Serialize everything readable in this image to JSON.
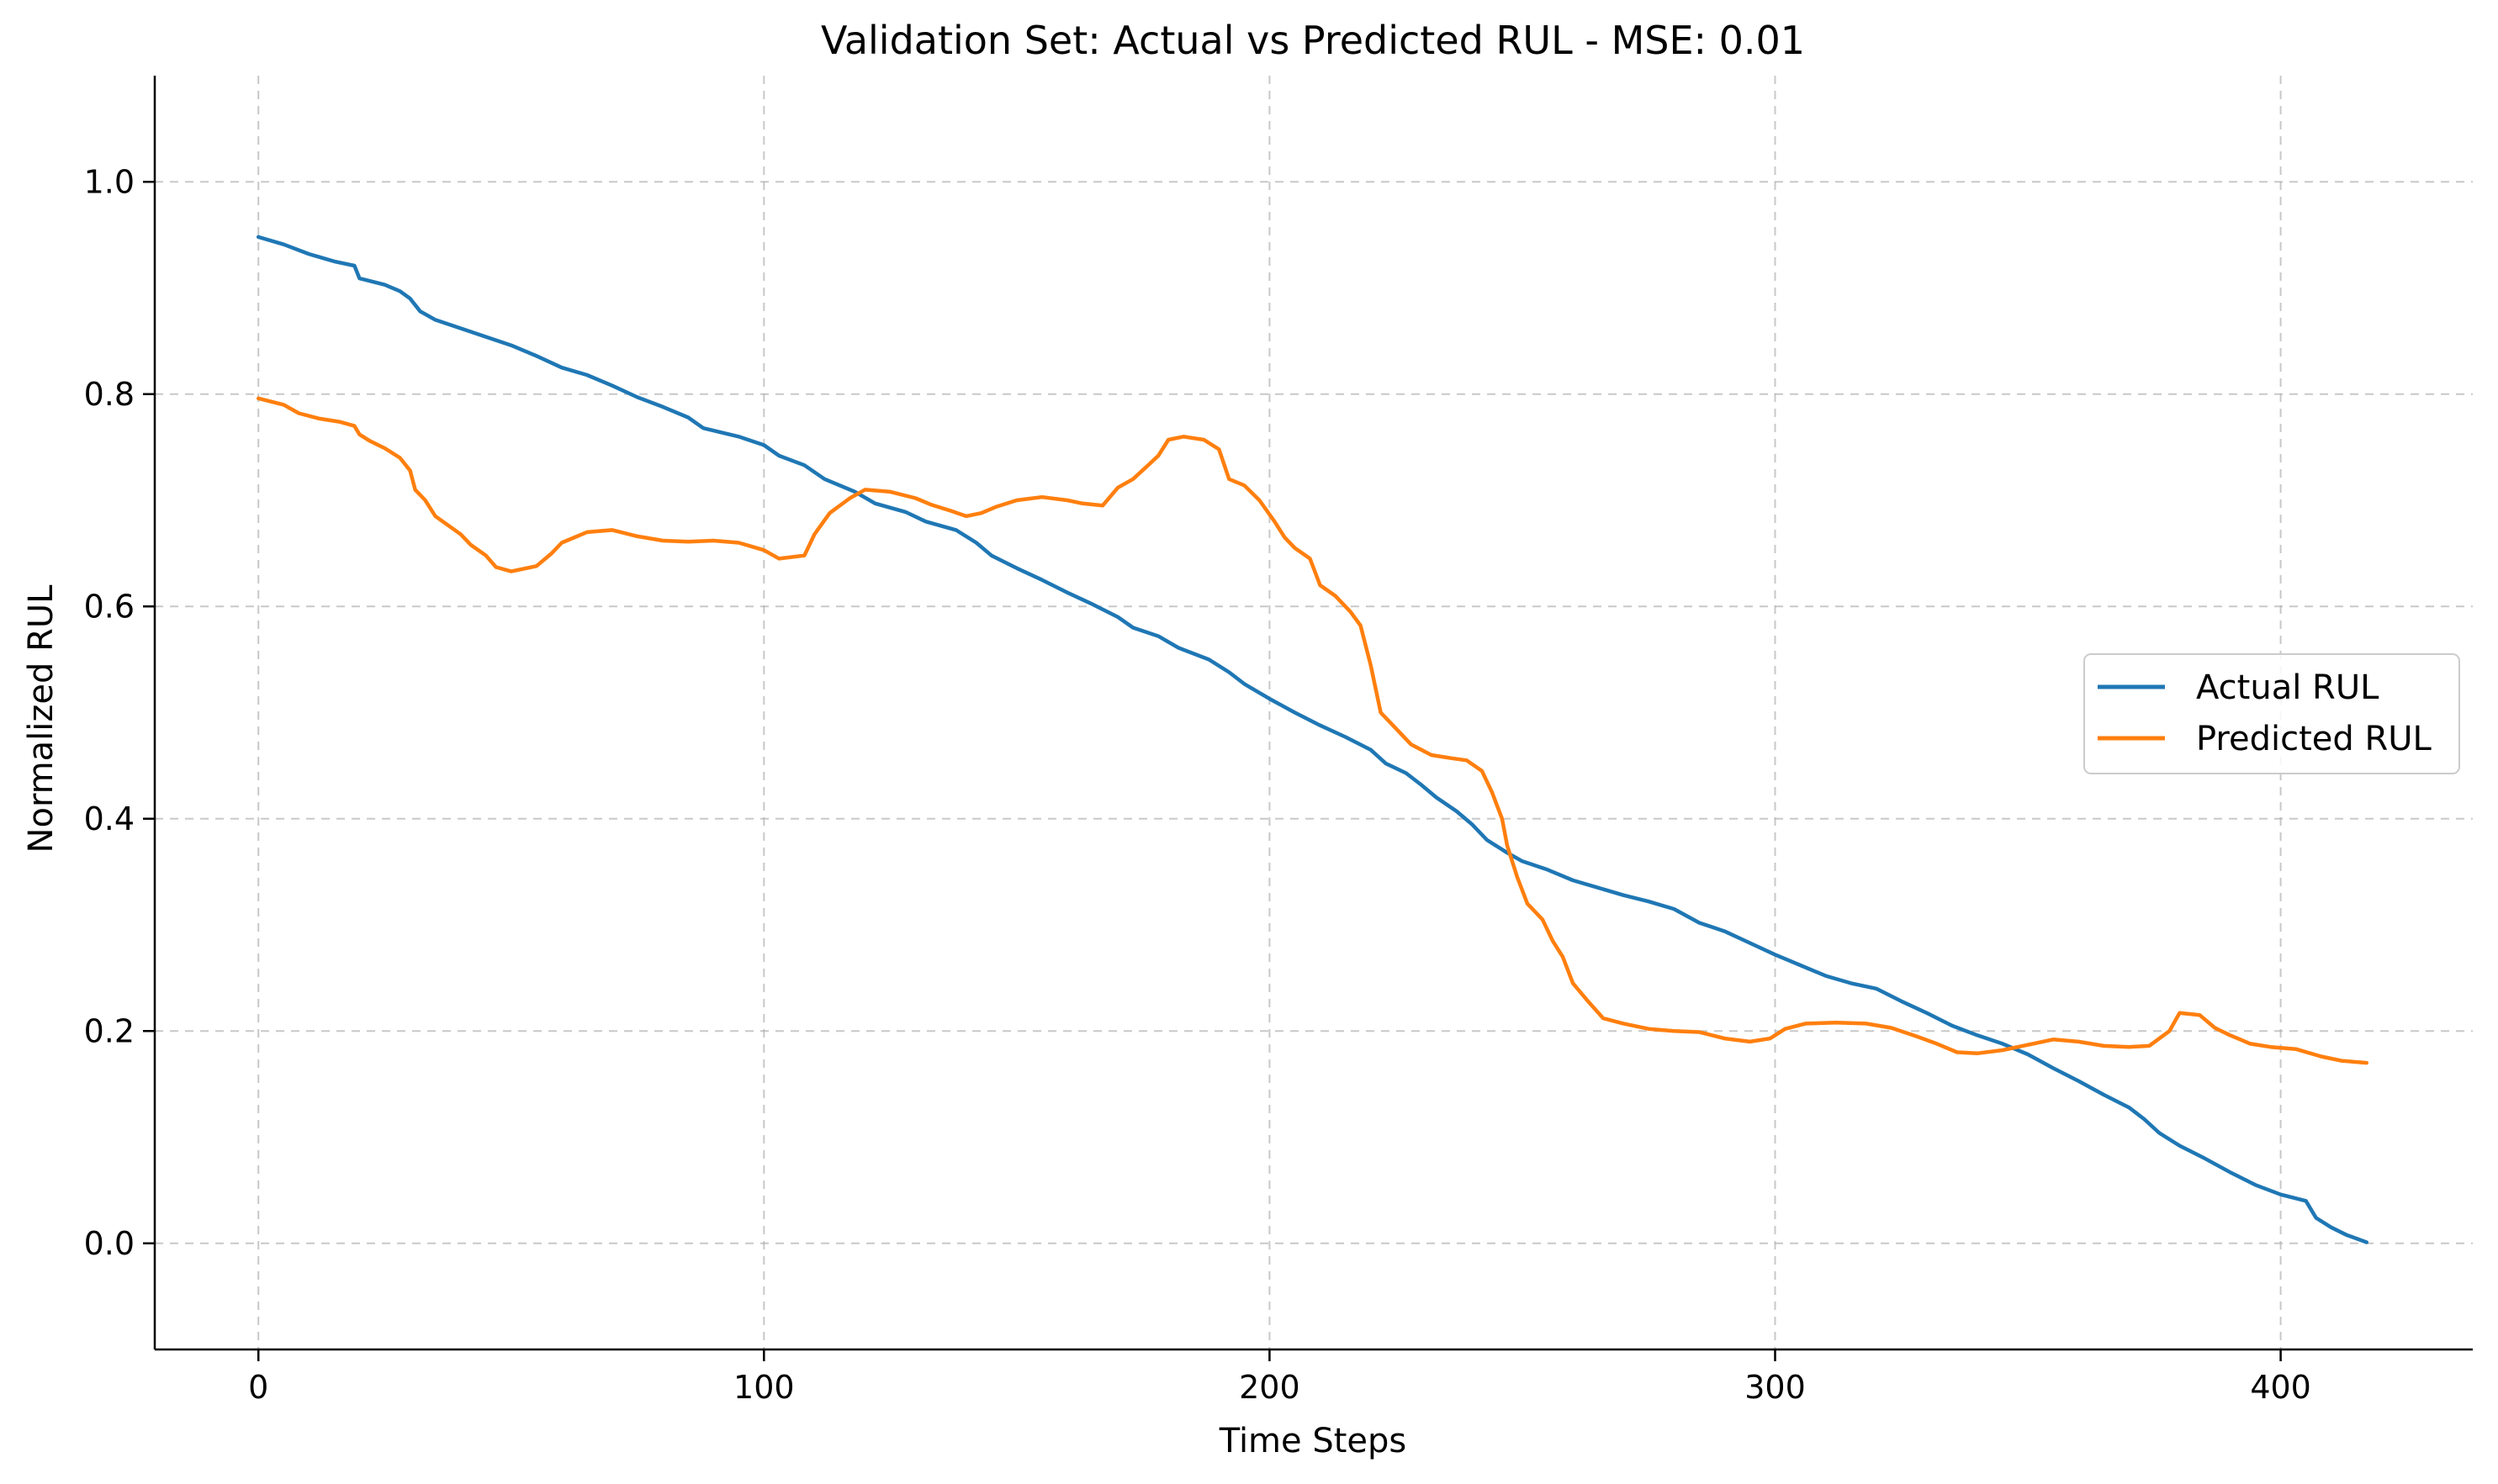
{
  "chart_data": {
    "type": "line",
    "title": "Validation Set: Actual vs Predicted RUL - MSE: 0.01",
    "xlabel": "Time Steps",
    "ylabel": "Normalized RUL",
    "xlim": [
      -20.5,
      438
    ],
    "ylim": [
      -0.1,
      1.1
    ],
    "x_ticks": [
      0,
      100,
      200,
      300,
      400
    ],
    "y_ticks": [
      0.0,
      0.2,
      0.4,
      0.6,
      0.8,
      1.0
    ],
    "x_tick_labels": [
      "0",
      "100",
      "200",
      "300",
      "400"
    ],
    "y_tick_labels": [
      "0.0",
      "0.2",
      "0.4",
      "0.6",
      "0.8",
      "1.0"
    ],
    "grid": true,
    "legend_position": "right",
    "series": [
      {
        "name": "Actual RUL",
        "color": "#1f77b4",
        "points": [
          [
            0,
            0.948
          ],
          [
            5,
            0.941
          ],
          [
            10,
            0.932
          ],
          [
            15,
            0.925
          ],
          [
            19,
            0.921
          ],
          [
            20,
            0.909
          ],
          [
            25,
            0.903
          ],
          [
            28,
            0.897
          ],
          [
            30,
            0.89
          ],
          [
            32,
            0.878
          ],
          [
            35,
            0.87
          ],
          [
            40,
            0.862
          ],
          [
            45,
            0.854
          ],
          [
            50,
            0.846
          ],
          [
            55,
            0.836
          ],
          [
            60,
            0.825
          ],
          [
            65,
            0.818
          ],
          [
            70,
            0.808
          ],
          [
            75,
            0.797
          ],
          [
            80,
            0.788
          ],
          [
            85,
            0.778
          ],
          [
            88,
            0.768
          ],
          [
            95,
            0.76
          ],
          [
            100,
            0.752
          ],
          [
            103,
            0.742
          ],
          [
            108,
            0.733
          ],
          [
            112,
            0.72
          ],
          [
            118,
            0.708
          ],
          [
            122,
            0.697
          ],
          [
            128,
            0.689
          ],
          [
            132,
            0.68
          ],
          [
            138,
            0.672
          ],
          [
            142,
            0.66
          ],
          [
            145,
            0.648
          ],
          [
            150,
            0.636
          ],
          [
            155,
            0.625
          ],
          [
            160,
            0.613
          ],
          [
            165,
            0.602
          ],
          [
            170,
            0.59
          ],
          [
            173,
            0.58
          ],
          [
            178,
            0.572
          ],
          [
            182,
            0.561
          ],
          [
            188,
            0.55
          ],
          [
            192,
            0.538
          ],
          [
            195,
            0.527
          ],
          [
            200,
            0.513
          ],
          [
            205,
            0.5
          ],
          [
            210,
            0.488
          ],
          [
            215,
            0.477
          ],
          [
            220,
            0.465
          ],
          [
            223,
            0.452
          ],
          [
            227,
            0.443
          ],
          [
            230,
            0.432
          ],
          [
            233,
            0.42
          ],
          [
            237,
            0.407
          ],
          [
            240,
            0.395
          ],
          [
            243,
            0.38
          ],
          [
            247,
            0.368
          ],
          [
            250,
            0.36
          ],
          [
            255,
            0.352
          ],
          [
            260,
            0.342
          ],
          [
            265,
            0.335
          ],
          [
            270,
            0.328
          ],
          [
            275,
            0.322
          ],
          [
            280,
            0.315
          ],
          [
            285,
            0.302
          ],
          [
            290,
            0.294
          ],
          [
            295,
            0.283
          ],
          [
            300,
            0.272
          ],
          [
            305,
            0.262
          ],
          [
            310,
            0.252
          ],
          [
            315,
            0.245
          ],
          [
            320,
            0.24
          ],
          [
            325,
            0.228
          ],
          [
            330,
            0.217
          ],
          [
            335,
            0.205
          ],
          [
            340,
            0.196
          ],
          [
            345,
            0.188
          ],
          [
            350,
            0.178
          ],
          [
            355,
            0.165
          ],
          [
            360,
            0.153
          ],
          [
            365,
            0.14
          ],
          [
            370,
            0.128
          ],
          [
            373,
            0.117
          ],
          [
            376,
            0.104
          ],
          [
            380,
            0.092
          ],
          [
            385,
            0.08
          ],
          [
            390,
            0.067
          ],
          [
            395,
            0.055
          ],
          [
            400,
            0.046
          ],
          [
            405,
            0.04
          ],
          [
            407,
            0.024
          ],
          [
            410,
            0.015
          ],
          [
            413,
            0.008
          ],
          [
            417,
            0.001
          ]
        ]
      },
      {
        "name": "Predicted RUL",
        "color": "#ff7f0e",
        "points": [
          [
            0,
            0.796
          ],
          [
            5,
            0.79
          ],
          [
            8,
            0.782
          ],
          [
            12,
            0.777
          ],
          [
            16,
            0.774
          ],
          [
            19,
            0.77
          ],
          [
            20,
            0.762
          ],
          [
            22,
            0.756
          ],
          [
            25,
            0.749
          ],
          [
            28,
            0.74
          ],
          [
            30,
            0.728
          ],
          [
            31,
            0.71
          ],
          [
            33,
            0.7
          ],
          [
            35,
            0.685
          ],
          [
            40,
            0.668
          ],
          [
            42,
            0.658
          ],
          [
            45,
            0.648
          ],
          [
            47,
            0.637
          ],
          [
            50,
            0.633
          ],
          [
            55,
            0.638
          ],
          [
            58,
            0.65
          ],
          [
            60,
            0.66
          ],
          [
            65,
            0.67
          ],
          [
            70,
            0.672
          ],
          [
            75,
            0.666
          ],
          [
            80,
            0.662
          ],
          [
            85,
            0.661
          ],
          [
            90,
            0.662
          ],
          [
            95,
            0.66
          ],
          [
            100,
            0.653
          ],
          [
            103,
            0.645
          ],
          [
            108,
            0.648
          ],
          [
            110,
            0.668
          ],
          [
            113,
            0.688
          ],
          [
            117,
            0.702
          ],
          [
            120,
            0.71
          ],
          [
            125,
            0.708
          ],
          [
            130,
            0.702
          ],
          [
            133,
            0.696
          ],
          [
            137,
            0.69
          ],
          [
            140,
            0.685
          ],
          [
            143,
            0.688
          ],
          [
            146,
            0.694
          ],
          [
            150,
            0.7
          ],
          [
            155,
            0.703
          ],
          [
            160,
            0.7
          ],
          [
            163,
            0.697
          ],
          [
            167,
            0.695
          ],
          [
            170,
            0.712
          ],
          [
            173,
            0.72
          ],
          [
            176,
            0.733
          ],
          [
            178,
            0.742
          ],
          [
            180,
            0.757
          ],
          [
            183,
            0.76
          ],
          [
            187,
            0.757
          ],
          [
            190,
            0.748
          ],
          [
            192,
            0.72
          ],
          [
            195,
            0.714
          ],
          [
            198,
            0.7
          ],
          [
            201,
            0.68
          ],
          [
            203,
            0.665
          ],
          [
            205,
            0.655
          ],
          [
            208,
            0.645
          ],
          [
            210,
            0.62
          ],
          [
            213,
            0.61
          ],
          [
            216,
            0.595
          ],
          [
            218,
            0.582
          ],
          [
            220,
            0.545
          ],
          [
            222,
            0.5
          ],
          [
            225,
            0.485
          ],
          [
            228,
            0.47
          ],
          [
            232,
            0.46
          ],
          [
            236,
            0.457
          ],
          [
            239,
            0.455
          ],
          [
            242,
            0.445
          ],
          [
            244,
            0.425
          ],
          [
            246,
            0.4
          ],
          [
            247,
            0.375
          ],
          [
            249,
            0.345
          ],
          [
            251,
            0.32
          ],
          [
            254,
            0.305
          ],
          [
            256,
            0.285
          ],
          [
            258,
            0.27
          ],
          [
            260,
            0.245
          ],
          [
            263,
            0.228
          ],
          [
            266,
            0.212
          ],
          [
            270,
            0.207
          ],
          [
            275,
            0.202
          ],
          [
            280,
            0.2
          ],
          [
            285,
            0.199
          ],
          [
            290,
            0.193
          ],
          [
            295,
            0.19
          ],
          [
            299,
            0.193
          ],
          [
            302,
            0.202
          ],
          [
            306,
            0.207
          ],
          [
            312,
            0.208
          ],
          [
            318,
            0.207
          ],
          [
            323,
            0.203
          ],
          [
            328,
            0.195
          ],
          [
            332,
            0.188
          ],
          [
            336,
            0.18
          ],
          [
            340,
            0.179
          ],
          [
            345,
            0.182
          ],
          [
            350,
            0.187
          ],
          [
            355,
            0.192
          ],
          [
            360,
            0.19
          ],
          [
            365,
            0.186
          ],
          [
            370,
            0.185
          ],
          [
            374,
            0.186
          ],
          [
            378,
            0.2
          ],
          [
            380,
            0.217
          ],
          [
            384,
            0.215
          ],
          [
            387,
            0.203
          ],
          [
            390,
            0.196
          ],
          [
            394,
            0.188
          ],
          [
            398,
            0.185
          ],
          [
            403,
            0.183
          ],
          [
            408,
            0.176
          ],
          [
            412,
            0.172
          ],
          [
            417,
            0.17
          ]
        ]
      }
    ]
  }
}
